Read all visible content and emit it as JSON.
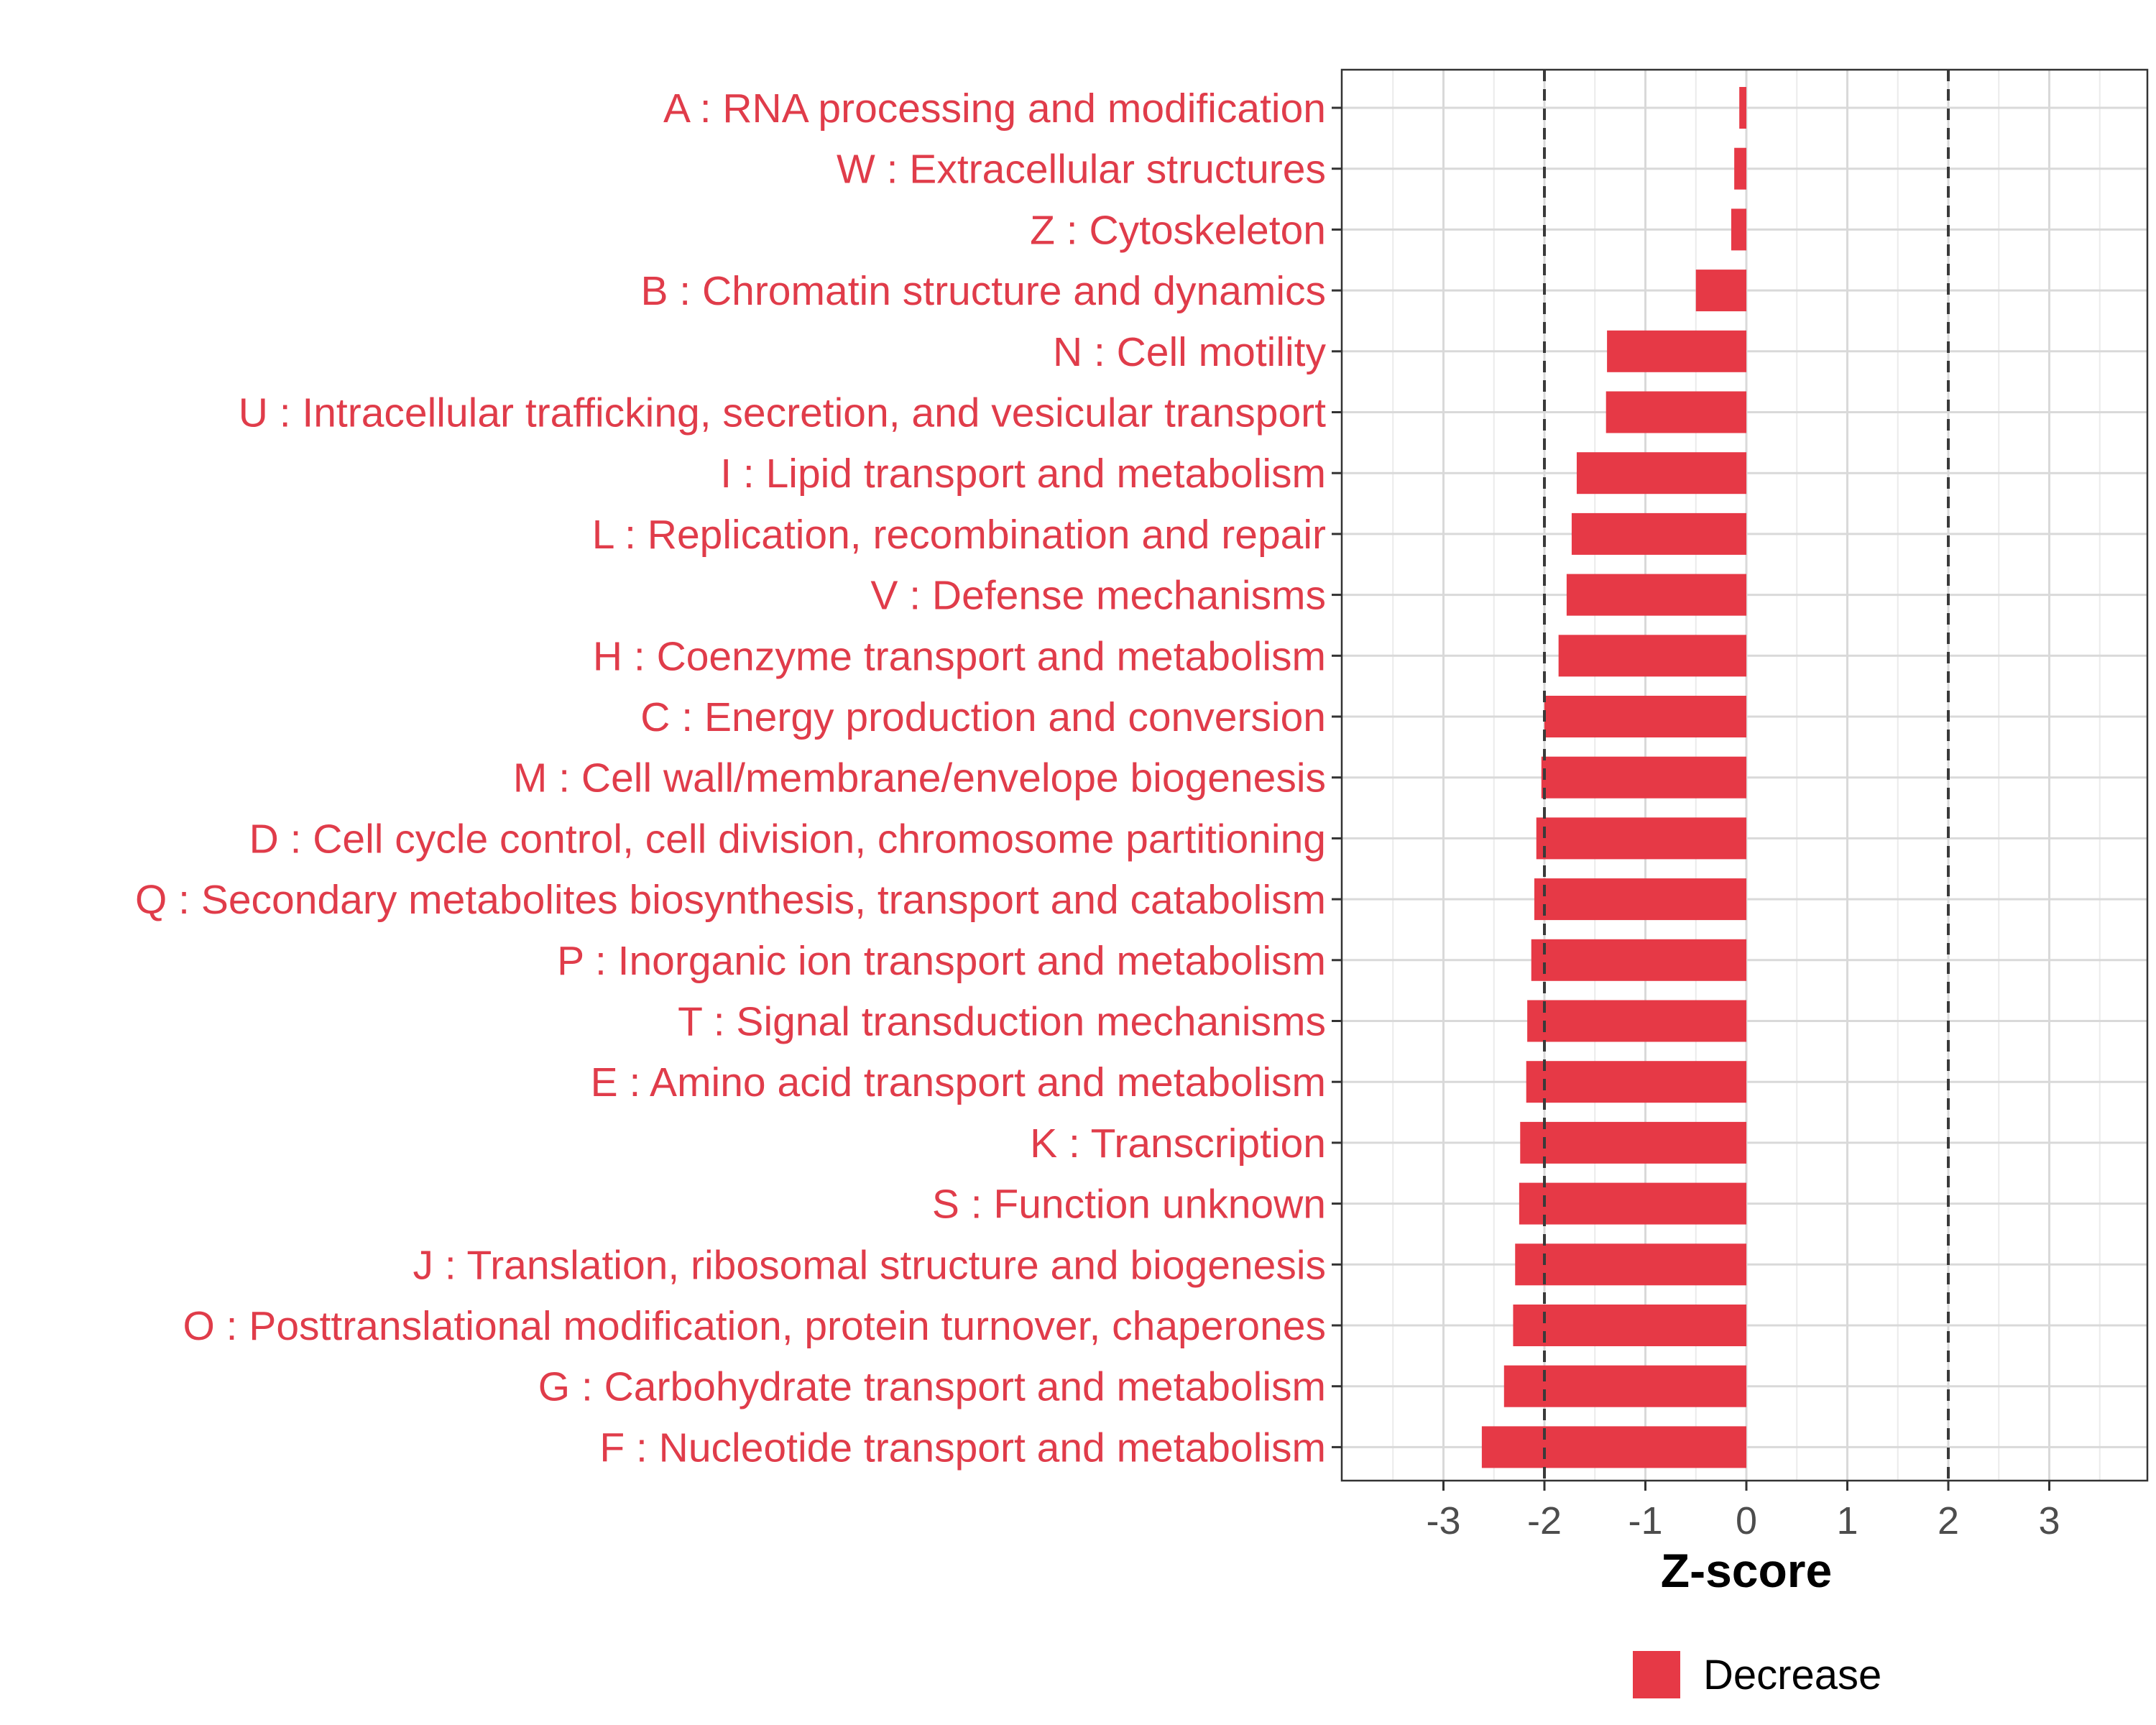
{
  "chart_data": {
    "type": "bar",
    "orientation": "horizontal",
    "categories": [
      "A : RNA processing and modification",
      "W : Extracellular structures",
      "Z : Cytoskeleton",
      "B : Chromatin structure and dynamics",
      "N : Cell motility",
      "U : Intracellular trafficking, secretion, and vesicular transport",
      "I : Lipid transport and metabolism",
      "L : Replication, recombination and repair",
      "V : Defense mechanisms",
      "H : Coenzyme transport and metabolism",
      "C : Energy production and conversion",
      "M : Cell wall/membrane/envelope biogenesis",
      "D : Cell cycle control, cell division, chromosome partitioning",
      "Q : Secondary metabolites biosynthesis, transport and catabolism",
      "P : Inorganic ion transport and metabolism",
      "T : Signal transduction mechanisms",
      "E : Amino acid transport and metabolism",
      "K : Transcription",
      "S : Function unknown",
      "J : Translation, ribosomal structure and biogenesis",
      "O : Posttranslational modification, protein turnover, chaperones",
      "G : Carbohydrate transport and metabolism",
      "F : Nucleotide transport and metabolism"
    ],
    "values": [
      -0.07,
      -0.12,
      -0.15,
      -0.5,
      -1.38,
      -1.39,
      -1.68,
      -1.73,
      -1.78,
      -1.86,
      -2.0,
      -2.03,
      -2.08,
      -2.1,
      -2.13,
      -2.17,
      -2.18,
      -2.24,
      -2.25,
      -2.29,
      -2.31,
      -2.4,
      -2.62
    ],
    "xlabel": "Z-score",
    "ylabel": "",
    "xlim": [
      -4,
      4
    ],
    "xticks": [
      -3,
      -2,
      -1,
      0,
      1,
      2,
      3
    ],
    "xtick_labels": [
      "-3",
      "-2",
      "-1",
      "0",
      "1",
      "2",
      "3"
    ],
    "reference_lines": [
      -2,
      2
    ],
    "grid": true,
    "legend": {
      "position": "bottom",
      "entries": [
        {
          "label": "Decrease",
          "color": "#e63946"
        }
      ]
    },
    "colors": {
      "bar": "#e63946",
      "label": "#e03c4a"
    }
  }
}
